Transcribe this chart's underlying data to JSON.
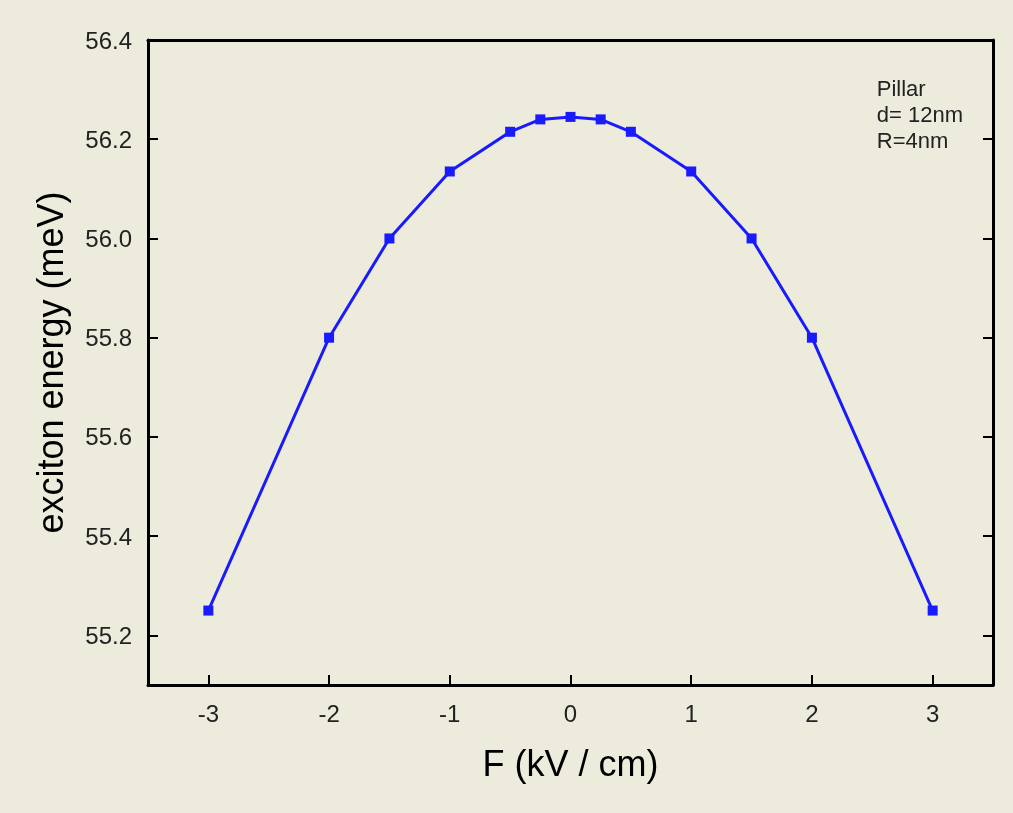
{
  "chart_data": {
    "type": "line",
    "xlabel": "F (kV / cm)",
    "ylabel": "exciton energy (meV)",
    "annotations": [
      "Pillar\nd= 12nm\nR=4nm"
    ],
    "x": [
      -3,
      -2,
      -1.5,
      -1,
      -0.5,
      -0.25,
      0,
      0.25,
      0.5,
      1,
      1.5,
      2,
      3
    ],
    "series": [
      {
        "color": "#1a1aff",
        "values": [
          55.25,
          55.8,
          56.0,
          56.135,
          56.215,
          56.24,
          56.245,
          56.24,
          56.215,
          56.135,
          56.0,
          55.8,
          55.25
        ]
      }
    ],
    "xlim": [
      -3.5,
      3.5
    ],
    "xticks": [
      -3,
      -2,
      -1,
      0,
      1,
      2,
      3
    ],
    "ylim": [
      55.1,
      56.4
    ],
    "yticks": [
      55.2,
      55.4,
      55.6,
      55.8,
      {
        "value": 56,
        "label": "56.0"
      },
      56.2,
      56.4
    ],
    "marker": "square",
    "line_style": "solid",
    "grid": false
  }
}
